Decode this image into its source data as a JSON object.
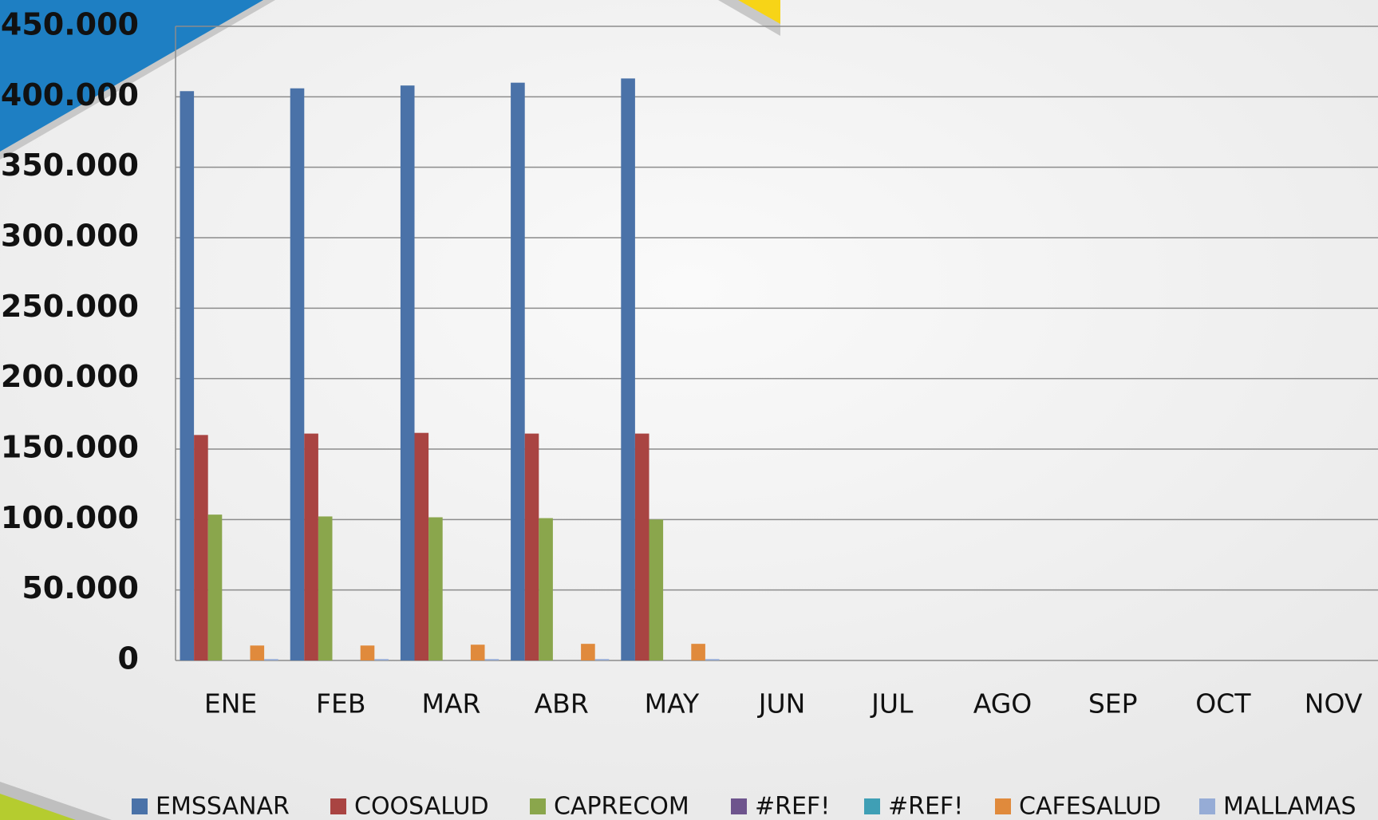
{
  "chart_data": {
    "type": "bar",
    "categories": [
      "ENE",
      "FEB",
      "MAR",
      "ABR",
      "MAY",
      "JUN",
      "JUL",
      "AGO",
      "SEP",
      "OCT",
      "NOV"
    ],
    "series": [
      {
        "name": "EMSSANAR",
        "color": "#4a72a8",
        "values": [
          404000,
          406000,
          408000,
          410000,
          413000,
          null,
          null,
          null,
          null,
          null,
          null
        ]
      },
      {
        "name": "COOSALUD",
        "color": "#a94442",
        "values": [
          160000,
          161000,
          161500,
          161000,
          161000,
          null,
          null,
          null,
          null,
          null,
          null
        ]
      },
      {
        "name": "CAPRECOM",
        "color": "#8aa64c",
        "values": [
          103500,
          102200,
          101600,
          101000,
          100000,
          null,
          null,
          null,
          null,
          null,
          null
        ]
      },
      {
        "name": "#REF!",
        "color": "#6e548d",
        "values": [
          null,
          null,
          null,
          null,
          null,
          null,
          null,
          null,
          null,
          null,
          null
        ]
      },
      {
        "name": "#REF!",
        "color": "#3f9fb5",
        "values": [
          null,
          null,
          null,
          null,
          null,
          null,
          null,
          null,
          null,
          null,
          null
        ]
      },
      {
        "name": "CAFESALUD",
        "color": "#e08a3c",
        "values": [
          10600,
          10600,
          11200,
          11800,
          11800,
          null,
          null,
          null,
          null,
          null,
          null
        ]
      },
      {
        "name": "MALLAMAS",
        "color": "#96acd6",
        "values": [
          1000,
          1000,
          1000,
          1000,
          1000,
          null,
          null,
          null,
          null,
          null,
          null
        ]
      }
    ],
    "ylim": [
      0,
      450000
    ],
    "yticks": [
      0,
      {
        "value": 50000,
        "label": "50.000"
      },
      {
        "value": 100000,
        "label": "100.000"
      },
      {
        "value": 150000,
        "label": "150.000"
      },
      {
        "value": 200000,
        "label": "200.000"
      },
      {
        "value": 250000,
        "label": "250.000"
      },
      {
        "value": 300000,
        "label": "300.000"
      },
      {
        "value": 350000,
        "label": "350.000"
      },
      {
        "value": 400000,
        "label": "400.000"
      },
      {
        "value": 450000,
        "label": "450.000"
      }
    ],
    "grid": true,
    "legend": "bottom"
  }
}
